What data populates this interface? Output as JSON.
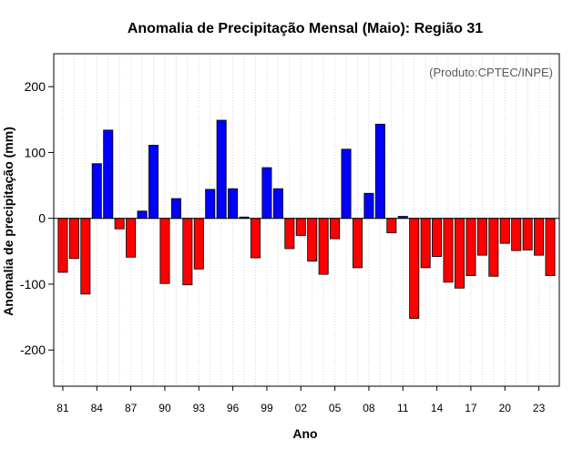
{
  "chart_data": {
    "type": "bar",
    "title": "Anomalia de Precipitação Mensal (Maio): Região 31",
    "xlabel": "Ano",
    "ylabel": "Anomalia de precipitação (mm)",
    "credit": "(Produto:CPTEC/INPE)",
    "ylim": [
      -255,
      250
    ],
    "yticks": [
      -200,
      -100,
      0,
      100,
      200
    ],
    "grid": true,
    "positive_color": "#0000ff",
    "negative_color": "#ff0000",
    "years": [
      1981,
      1982,
      1983,
      1984,
      1985,
      1986,
      1987,
      1988,
      1989,
      1990,
      1991,
      1992,
      1993,
      1994,
      1995,
      1996,
      1997,
      1998,
      1999,
      2000,
      2001,
      2002,
      2003,
      2004,
      2005,
      2006,
      2007,
      2008,
      2009,
      2010,
      2011,
      2012,
      2013,
      2014,
      2015,
      2016,
      2017,
      2018,
      2019,
      2020,
      2021,
      2022,
      2023,
      2024
    ],
    "values": [
      -82,
      -61,
      -115,
      83,
      134,
      -16,
      -59,
      11,
      111,
      -99,
      30,
      -101,
      -77,
      44,
      149,
      45,
      2,
      -60,
      77,
      45,
      -46,
      -26,
      -65,
      -85,
      -31,
      105,
      -75,
      38,
      143,
      -22,
      3,
      -152,
      -75,
      -58,
      -97,
      -106,
      -87,
      -56,
      -88,
      -38,
      -49,
      -48,
      -56,
      -87
    ],
    "xtick_labels": [
      "81",
      "84",
      "87",
      "90",
      "93",
      "96",
      "99",
      "02",
      "05",
      "08",
      "11",
      "14",
      "17",
      "20",
      "23"
    ],
    "xtick_years": [
      1981,
      1984,
      1987,
      1990,
      1993,
      1996,
      1999,
      2002,
      2005,
      2008,
      2011,
      2014,
      2017,
      2020,
      2023
    ]
  }
}
